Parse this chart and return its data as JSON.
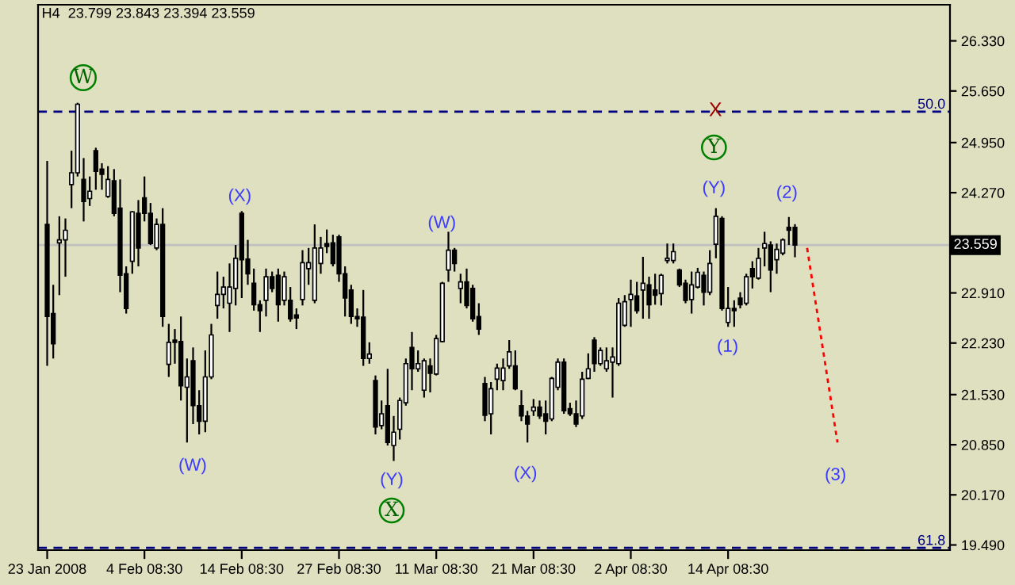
{
  "chart_data": {
    "type": "candlestick",
    "title": "H4  23.799 23.843 23.394 23.559",
    "categories": [
      "23 Jan 2008",
      null,
      null,
      null,
      null,
      null,
      null,
      null,
      null,
      null,
      null,
      null,
      null,
      null,
      null,
      null,
      "4 Feb 08:30",
      null,
      null,
      null,
      null,
      null,
      null,
      null,
      null,
      null,
      null,
      null,
      null,
      null,
      null,
      null,
      "14 Feb 08:30",
      null,
      null,
      null,
      null,
      null,
      null,
      null,
      null,
      null,
      null,
      null,
      null,
      null,
      null,
      null,
      "27 Feb 08:30",
      null,
      null,
      null,
      null,
      null,
      null,
      null,
      null,
      null,
      null,
      null,
      null,
      null,
      null,
      null,
      "11 Mar 08:30",
      null,
      null,
      null,
      null,
      null,
      null,
      null,
      null,
      null,
      null,
      null,
      null,
      null,
      null,
      null,
      "21 Mar 08:30",
      null,
      null,
      null,
      null,
      null,
      null,
      null,
      null,
      null,
      null,
      null,
      null,
      null,
      null,
      null,
      "2 Apr 08:30",
      null,
      null,
      null,
      null,
      null,
      null,
      null,
      null,
      null,
      null,
      null,
      null,
      null,
      null,
      null,
      "14 Apr 08:30",
      null,
      null,
      null,
      null,
      null,
      null,
      null,
      null,
      null,
      null,
      null,
      null,
      null,
      null,
      null,
      null,
      null,
      null,
      null,
      null,
      null,
      null,
      null,
      null,
      null,
      null,
      null,
      null,
      null,
      null,
      null,
      null,
      null,
      null,
      null,
      null
    ],
    "ohlc": [
      [
        23.84,
        24.7,
        21.92,
        22.59
      ],
      [
        22.63,
        23.02,
        22.02,
        22.22
      ],
      [
        23.59,
        23.95,
        22.88,
        23.63
      ],
      [
        23.63,
        23.92,
        23.13,
        23.76
      ],
      [
        24.38,
        24.84,
        24.06,
        24.54
      ],
      [
        24.54,
        25.49,
        24.49,
        25.47
      ],
      [
        24.45,
        24.74,
        23.88,
        24.15
      ],
      [
        24.19,
        24.49,
        24.09,
        24.29
      ],
      [
        24.84,
        24.88,
        24.31,
        24.56
      ],
      [
        24.59,
        24.67,
        24.31,
        24.52
      ],
      [
        24.22,
        24.63,
        24.2,
        24.45
      ],
      [
        24.43,
        24.59,
        23.95,
        23.99
      ],
      [
        24.06,
        24.45,
        22.92,
        23.15
      ],
      [
        23.17,
        23.27,
        22.63,
        22.7
      ],
      [
        23.34,
        24.02,
        23.17,
        24.01
      ],
      [
        23.99,
        24.17,
        23.27,
        23.52
      ],
      [
        24.2,
        24.49,
        23.88,
        23.99
      ],
      [
        23.99,
        24.13,
        23.56,
        23.58
      ],
      [
        23.52,
        23.92,
        23.49,
        23.84
      ],
      [
        23.84,
        24.06,
        22.45,
        22.59
      ],
      [
        21.94,
        22.49,
        21.77,
        22.24
      ],
      [
        22.27,
        22.42,
        21.95,
        22.24
      ],
      [
        22.25,
        22.59,
        21.45,
        21.65
      ],
      [
        21.63,
        22.02,
        20.88,
        21.77
      ],
      [
        21.99,
        22.17,
        21.13,
        21.38
      ],
      [
        21.38,
        21.59,
        20.99,
        21.17
      ],
      [
        21.17,
        22.13,
        21.02,
        21.77
      ],
      [
        21.77,
        22.49,
        21.74,
        22.34
      ],
      [
        22.74,
        23.2,
        22.56,
        22.89
      ],
      [
        22.89,
        23.13,
        22.7,
        22.99
      ],
      [
        22.77,
        23.31,
        22.38,
        22.99
      ],
      [
        22.97,
        23.56,
        22.74,
        23.38
      ],
      [
        23.99,
        24.02,
        22.84,
        23.36
      ],
      [
        23.37,
        23.63,
        23.02,
        23.17
      ],
      [
        23.04,
        23.24,
        22.67,
        22.75
      ],
      [
        22.75,
        22.81,
        22.38,
        22.67
      ],
      [
        22.81,
        23.24,
        22.59,
        23.13
      ],
      [
        23.13,
        23.2,
        22.92,
        22.97
      ],
      [
        23.15,
        23.24,
        22.52,
        22.75
      ],
      [
        22.81,
        23.2,
        22.74,
        23.13
      ],
      [
        22.81,
        22.99,
        22.52,
        22.56
      ],
      [
        22.61,
        22.7,
        22.42,
        22.57
      ],
      [
        22.82,
        23.49,
        22.74,
        23.32
      ],
      [
        23.24,
        23.52,
        23.02,
        23.32
      ],
      [
        22.81,
        23.84,
        22.77,
        23.52
      ],
      [
        23.31,
        23.67,
        23.17,
        23.52
      ],
      [
        23.58,
        23.77,
        23.45,
        23.54
      ],
      [
        23.59,
        23.7,
        23.27,
        23.31
      ],
      [
        23.67,
        23.7,
        23.06,
        23.17
      ],
      [
        23.17,
        23.27,
        22.59,
        22.84
      ],
      [
        22.95,
        23.02,
        22.49,
        22.59
      ],
      [
        22.59,
        22.7,
        22.45,
        22.56
      ],
      [
        22.58,
        22.95,
        21.92,
        22.02
      ],
      [
        22.02,
        22.24,
        21.95,
        22.08
      ],
      [
        21.72,
        21.79,
        20.99,
        21.09
      ],
      [
        21.11,
        21.45,
        21.06,
        21.27
      ],
      [
        21.38,
        21.88,
        20.84,
        20.88
      ],
      [
        20.84,
        21.24,
        20.63,
        21.02
      ],
      [
        21.06,
        21.49,
        20.92,
        21.45
      ],
      [
        21.42,
        22.02,
        21.38,
        21.95
      ],
      [
        22.17,
        22.38,
        21.59,
        21.88
      ],
      [
        21.88,
        22.13,
        21.84,
        21.95
      ],
      [
        21.59,
        22.02,
        21.49,
        21.99
      ],
      [
        21.92,
        22.02,
        21.56,
        21.82
      ],
      [
        21.81,
        22.34,
        21.79,
        22.29
      ],
      [
        22.25,
        23.06,
        22.24,
        23.04
      ],
      [
        23.22,
        23.74,
        23.06,
        23.49
      ],
      [
        23.49,
        23.52,
        23.2,
        23.31
      ],
      [
        22.97,
        23.17,
        22.77,
        23.06
      ],
      [
        23.06,
        23.24,
        22.7,
        22.74
      ],
      [
        22.97,
        23.02,
        22.52,
        22.56
      ],
      [
        22.59,
        22.77,
        22.34,
        22.42
      ],
      [
        21.68,
        21.77,
        21.17,
        21.25
      ],
      [
        21.27,
        21.7,
        20.99,
        21.61
      ],
      [
        21.74,
        21.95,
        21.59,
        21.89
      ],
      [
        21.72,
        22.02,
        21.59,
        21.89
      ],
      [
        21.92,
        22.27,
        21.88,
        22.11
      ],
      [
        21.92,
        22.13,
        21.59,
        21.61
      ],
      [
        21.38,
        21.59,
        21.17,
        21.24
      ],
      [
        21.24,
        21.31,
        20.88,
        21.13
      ],
      [
        21.31,
        21.47,
        21.24,
        21.36
      ],
      [
        21.36,
        21.45,
        21.2,
        21.24
      ],
      [
        21.27,
        21.45,
        20.99,
        21.17
      ],
      [
        21.2,
        21.77,
        21.17,
        21.75
      ],
      [
        21.63,
        22.02,
        21.59,
        21.97
      ],
      [
        21.97,
        22.02,
        21.27,
        21.31
      ],
      [
        21.34,
        21.42,
        21.24,
        21.27
      ],
      [
        21.27,
        21.45,
        21.09,
        21.13
      ],
      [
        21.24,
        21.84,
        21.2,
        21.74
      ],
      [
        21.75,
        22.09,
        21.74,
        21.88
      ],
      [
        22.27,
        22.31,
        21.84,
        21.95
      ],
      [
        21.95,
        22.17,
        21.92,
        22.13
      ],
      [
        21.88,
        22.17,
        21.84,
        21.99
      ],
      [
        21.97,
        22.17,
        21.49,
        22.04
      ],
      [
        21.95,
        22.84,
        21.92,
        22.77
      ],
      [
        22.47,
        22.88,
        22.45,
        22.79
      ],
      [
        22.82,
        23.09,
        22.45,
        22.89
      ],
      [
        22.87,
        23.06,
        22.63,
        22.67
      ],
      [
        22.95,
        23.4,
        22.56,
        23.04
      ],
      [
        23.02,
        23.13,
        22.56,
        22.75
      ],
      [
        22.95,
        23.17,
        22.75,
        22.88
      ],
      [
        22.9,
        23.17,
        22.74,
        23.15
      ],
      [
        23.35,
        23.58,
        23.31,
        23.38
      ],
      [
        23.35,
        23.58,
        23.31,
        23.47
      ],
      [
        23.22,
        23.24,
        22.99,
        23.02
      ],
      [
        23.04,
        23.09,
        22.77,
        22.81
      ],
      [
        22.82,
        23.2,
        22.63,
        23.02
      ],
      [
        22.99,
        23.25,
        22.97,
        23.19
      ],
      [
        23.15,
        23.2,
        22.74,
        22.92
      ],
      [
        22.92,
        23.49,
        22.88,
        23.31
      ],
      [
        23.57,
        24.06,
        23.38,
        23.95
      ],
      [
        23.92,
        23.95,
        22.67,
        22.7
      ],
      [
        22.51,
        22.99,
        22.45,
        22.7
      ],
      [
        22.7,
        22.81,
        22.45,
        22.67
      ],
      [
        22.84,
        22.92,
        22.7,
        22.75
      ],
      [
        22.77,
        23.17,
        22.74,
        23.13
      ],
      [
        23.24,
        23.34,
        22.97,
        23.13
      ],
      [
        23.11,
        23.52,
        23.09,
        23.38
      ],
      [
        23.52,
        23.74,
        23.27,
        23.58
      ],
      [
        23.56,
        23.61,
        22.92,
        23.22
      ],
      [
        23.36,
        23.58,
        23.17,
        23.5
      ],
      [
        23.45,
        23.65,
        23.42,
        23.63
      ],
      [
        23.8,
        23.94,
        23.56,
        23.76
      ],
      [
        23.799,
        23.843,
        23.394,
        23.559
      ],
      null,
      null,
      null,
      null,
      null,
      null,
      null,
      null,
      null,
      null,
      null,
      null,
      null,
      null,
      null,
      null,
      null,
      null,
      null,
      null,
      null,
      null,
      null,
      null,
      null
    ],
    "series": [
      {
        "type": "line",
        "color": "#ff0000",
        "line_style": "dotted",
        "values": [
          null,
          null,
          null,
          null,
          null,
          null,
          null,
          null,
          null,
          null,
          null,
          null,
          null,
          null,
          null,
          null,
          null,
          null,
          null,
          null,
          null,
          null,
          null,
          null,
          null,
          null,
          null,
          null,
          null,
          null,
          null,
          null,
          null,
          null,
          null,
          null,
          null,
          null,
          null,
          null,
          null,
          null,
          null,
          null,
          null,
          null,
          null,
          null,
          null,
          null,
          null,
          null,
          null,
          null,
          null,
          null,
          null,
          null,
          null,
          null,
          null,
          null,
          null,
          null,
          null,
          null,
          null,
          null,
          null,
          null,
          null,
          null,
          null,
          null,
          null,
          null,
          null,
          null,
          null,
          null,
          null,
          null,
          null,
          null,
          null,
          null,
          null,
          null,
          null,
          null,
          null,
          null,
          null,
          null,
          null,
          null,
          null,
          null,
          null,
          null,
          null,
          null,
          null,
          null,
          null,
          null,
          null,
          null,
          null,
          null,
          null,
          null,
          null,
          null,
          null,
          null,
          null,
          null,
          null,
          null,
          null,
          null,
          null,
          null,
          null,
          23.52,
          null,
          null,
          null,
          null,
          20.88,
          null,
          null,
          null,
          null,
          null,
          null,
          null,
          null,
          null,
          null,
          null,
          null,
          null,
          null,
          null,
          null,
          null,
          null
        ]
      }
    ],
    "ylim": [
      19.42,
      26.82
    ],
    "yticks": [
      {
        "value": 26.33,
        "label": "26.330"
      },
      {
        "value": 25.65,
        "label": "25.650"
      },
      {
        "value": 24.95,
        "label": "24.950"
      },
      {
        "value": 24.27,
        "label": "24.270"
      },
      {
        "value": 22.91,
        "label": "22.910"
      },
      {
        "value": 22.23,
        "label": "22.230"
      },
      {
        "value": 21.53,
        "label": "21.530"
      },
      {
        "value": 20.85,
        "label": "20.850"
      },
      {
        "value": 20.17,
        "label": "20.170"
      },
      {
        "value": 19.49,
        "label": "19.490"
      }
    ],
    "ref_lines": [
      {
        "axis": "y",
        "value": 25.37,
        "color": "#000080",
        "line_style": "dashed"
      },
      {
        "axis": "y",
        "value": 19.45,
        "color": "#000080",
        "line_style": "dashed"
      },
      {
        "axis": "y",
        "value": 23.559,
        "label": "23.559",
        "color": "#c0c0c0",
        "line_style": "solid"
      }
    ],
    "annotations": [
      "W",
      "(X)",
      "(W)",
      "(W)",
      "(Y)",
      "X",
      "(X)",
      "X",
      "Y",
      "(Y)",
      "(1)",
      "(2)",
      "(3)",
      {
        "text": "50.0",
        "y": 25.37
      },
      {
        "text": "61.8",
        "y": 19.45
      }
    ]
  }
}
